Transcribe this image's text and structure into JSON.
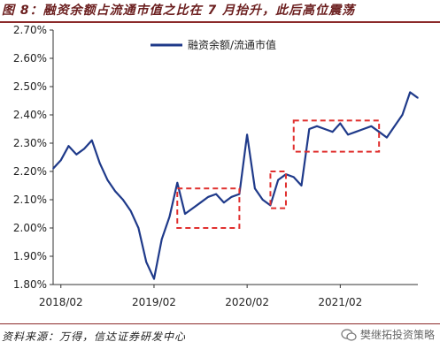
{
  "figure_title": "图 8：融资余额占流通市值之比在 7 月抬升，此后高位震荡",
  "source_note": "资料来源：万得，信达证券研发中心",
  "watermark": "樊继拓投资策略",
  "chart_data": {
    "type": "line",
    "title": "",
    "xlabel": "",
    "ylabel": "",
    "ylim": [
      0.018,
      0.027
    ],
    "yticks": [
      "1.80%",
      "1.90%",
      "2.00%",
      "2.10%",
      "2.20%",
      "2.30%",
      "2.40%",
      "2.50%",
      "2.60%",
      "2.70%"
    ],
    "ytick_values": [
      0.018,
      0.019,
      0.02,
      0.021,
      0.022,
      0.023,
      0.024,
      0.025,
      0.026,
      0.027
    ],
    "xticks": [
      "2018/02",
      "2019/02",
      "2020/02",
      "2021/02"
    ],
    "xlim": [
      "2018-01",
      "2021-12"
    ],
    "legend": {
      "position": "top-center"
    },
    "line_color": "#1f3a8a",
    "annotation_color": "#e0302f",
    "grid": false,
    "series": [
      {
        "name": "融资余额/流通市值",
        "x": [
          "2018-01",
          "2018-02",
          "2018-03",
          "2018-04",
          "2018-05",
          "2018-06",
          "2018-07",
          "2018-08",
          "2018-09",
          "2018-10",
          "2018-11",
          "2018-12",
          "2019-01",
          "2019-02",
          "2019-03",
          "2019-04",
          "2019-05",
          "2019-06",
          "2019-07",
          "2019-08",
          "2019-09",
          "2019-10",
          "2019-11",
          "2019-12",
          "2020-01",
          "2020-02",
          "2020-03",
          "2020-04",
          "2020-05",
          "2020-06",
          "2020-07",
          "2020-08",
          "2020-09",
          "2020-10",
          "2020-11",
          "2020-12",
          "2021-01",
          "2021-02",
          "2021-03",
          "2021-04",
          "2021-05",
          "2021-06",
          "2021-07",
          "2021-08",
          "2021-09",
          "2021-10",
          "2021-11",
          "2021-12"
        ],
        "values": [
          0.0221,
          0.0224,
          0.0229,
          0.0226,
          0.0228,
          0.0231,
          0.0223,
          0.0217,
          0.0213,
          0.021,
          0.0206,
          0.02,
          0.0188,
          0.0182,
          0.0196,
          0.0204,
          0.0216,
          0.0205,
          0.0207,
          0.0209,
          0.0211,
          0.0212,
          0.0209,
          0.0211,
          0.0212,
          0.0233,
          0.0214,
          0.021,
          0.0208,
          0.0217,
          0.0219,
          0.0218,
          0.0215,
          0.0235,
          0.0236,
          0.0235,
          0.0234,
          0.0237,
          0.0233,
          0.0234,
          0.0235,
          0.0236,
          0.0234,
          0.0232,
          0.0236,
          0.024,
          0.0248,
          0.0246
        ]
      }
    ],
    "annotations": [
      {
        "type": "dashed-box",
        "x": [
          "2019-05",
          "2020-01"
        ],
        "y": [
          0.02,
          0.0214
        ]
      },
      {
        "type": "dashed-box",
        "x": [
          "2020-05",
          "2020-07"
        ],
        "y": [
          0.0207,
          0.022
        ]
      },
      {
        "type": "dashed-box",
        "x": [
          "2020-08",
          "2021-07"
        ],
        "y": [
          0.0227,
          0.0238
        ]
      }
    ]
  }
}
